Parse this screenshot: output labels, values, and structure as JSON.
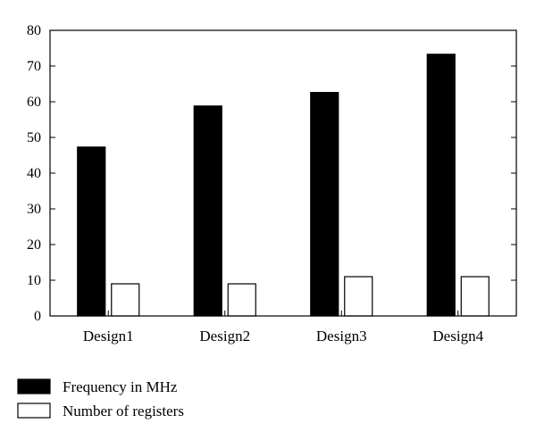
{
  "chart_data": {
    "type": "bar",
    "title": "",
    "xlabel": "",
    "ylabel": "",
    "categories": [
      "Design1",
      "Design2",
      "Design3",
      "Design4"
    ],
    "series": [
      {
        "name": "Frequency in MHz",
        "values": [
          47.3,
          58.8,
          62.6,
          73.3
        ],
        "color": "#000000"
      },
      {
        "name": "Number of registers",
        "values": [
          9,
          9,
          11,
          11
        ],
        "color": "#ffffff"
      }
    ],
    "ylim": [
      0,
      80
    ],
    "yticks": [
      0,
      10,
      20,
      30,
      40,
      50,
      60,
      70,
      80
    ],
    "grid": false,
    "legend_position": "bottom-left"
  }
}
